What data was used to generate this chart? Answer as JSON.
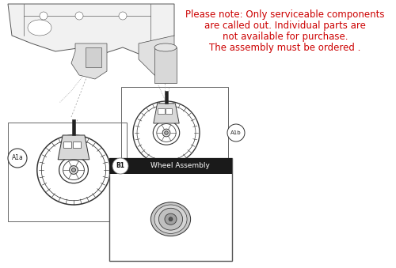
{
  "background_color": "#ffffff",
  "note_lines": [
    "Please note: Only serviceable components",
    "are called out. Individual parts are",
    "not available for purchase.",
    "The assembly must be ordered ."
  ],
  "note_color": "#cc0000",
  "note_fontsize": 8.5,
  "label_A1a": "A1a",
  "label_A1b": "A1b",
  "label_B1": "B1",
  "label_wheel": "Wheel Assembly",
  "figsize": [
    5.0,
    3.39
  ],
  "dpi": 100
}
